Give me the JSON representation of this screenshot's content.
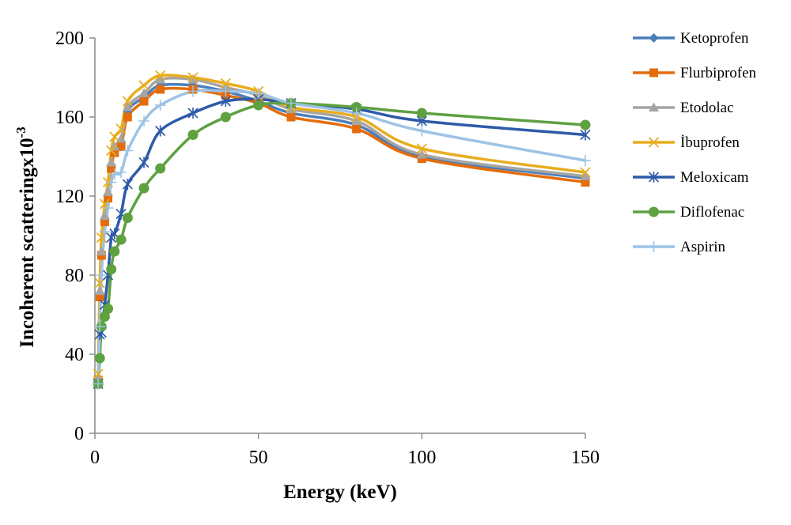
{
  "chart_data": {
    "type": "line",
    "xlabel": "Energy (keV)",
    "ylabel": "Incoherent scatteringx10",
    "ylabel_superscript": "-3",
    "xlim": [
      0,
      150
    ],
    "ylim": [
      0,
      200
    ],
    "x_ticks": [
      0,
      50,
      100,
      150
    ],
    "y_ticks": [
      0,
      40,
      80,
      120,
      160,
      200
    ],
    "x": [
      1,
      1.5,
      2,
      3,
      4,
      5,
      6,
      8,
      10,
      15,
      20,
      30,
      40,
      50,
      60,
      80,
      100,
      150
    ],
    "grid": false,
    "legend_position": "right",
    "series": [
      {
        "name": "Ketoprofen",
        "color": "#4a7ebb",
        "marker": "diamond",
        "values": [
          27,
          70,
          90,
          108,
          120,
          135,
          143,
          147,
          163,
          170,
          176,
          176,
          173,
          168,
          162,
          156,
          140,
          129
        ]
      },
      {
        "name": "Flurbiprofen",
        "color": "#e46c0a",
        "marker": "square",
        "values": [
          27,
          69,
          90,
          107,
          119,
          134,
          142,
          145,
          160,
          168,
          174,
          174,
          171,
          167,
          160,
          154,
          139,
          127
        ]
      },
      {
        "name": "Etodolac",
        "color": "#a5a5a5",
        "marker": "triangle",
        "values": [
          28,
          72,
          92,
          110,
          122,
          137,
          145,
          149,
          165,
          172,
          179,
          179,
          175,
          171,
          164,
          158,
          141,
          130
        ]
      },
      {
        "name": "İbuprofen",
        "color": "#e8ad1f",
        "marker": "x",
        "values": [
          30,
          76,
          99,
          116,
          127,
          143,
          150,
          154,
          168,
          176,
          181,
          180,
          177,
          173,
          165,
          160,
          144,
          132
        ]
      },
      {
        "name": "Meloxicam",
        "color": "#2e5aa8",
        "marker": "star",
        "values": [
          25,
          50,
          51,
          65,
          80,
          99,
          101,
          111,
          126,
          137,
          153,
          162,
          168,
          169,
          167,
          164,
          158,
          151
        ]
      },
      {
        "name": "Diflofenac",
        "color": "#5ea141",
        "marker": "circle",
        "values": [
          25,
          38,
          54,
          59,
          63,
          83,
          92,
          98,
          109,
          124,
          134,
          151,
          160,
          166,
          167,
          165,
          162,
          156
        ]
      },
      {
        "name": "Aspirin",
        "color": "#9dc3e6",
        "marker": "plus",
        "values": [
          25,
          54,
          80,
          102,
          114,
          127,
          131,
          132,
          143,
          158,
          166,
          173,
          173,
          172,
          167,
          162,
          153,
          138
        ]
      }
    ]
  }
}
